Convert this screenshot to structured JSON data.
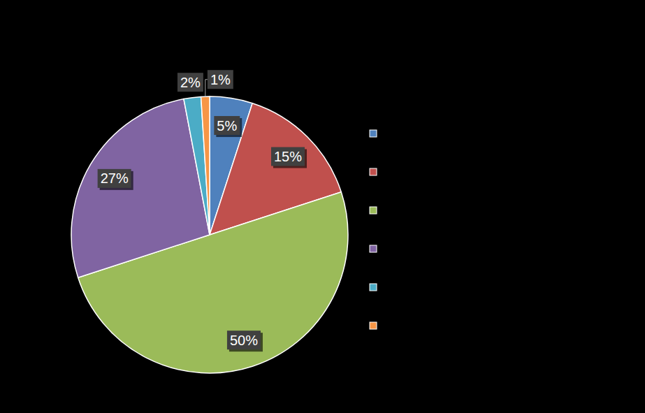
{
  "chart_data": {
    "type": "pie",
    "categories": [
      null,
      null,
      null,
      null,
      null,
      null
    ],
    "values": [
      5,
      15,
      50,
      27,
      2,
      1
    ],
    "value_labels": [
      "5%",
      "15%",
      "50%",
      "27%",
      "2%",
      "1%"
    ],
    "colors": [
      "#4f81bd",
      "#c0504d",
      "#9bbb59",
      "#8064a2",
      "#4bacc6",
      "#f79646"
    ],
    "data_labels": true,
    "legend": "right"
  }
}
